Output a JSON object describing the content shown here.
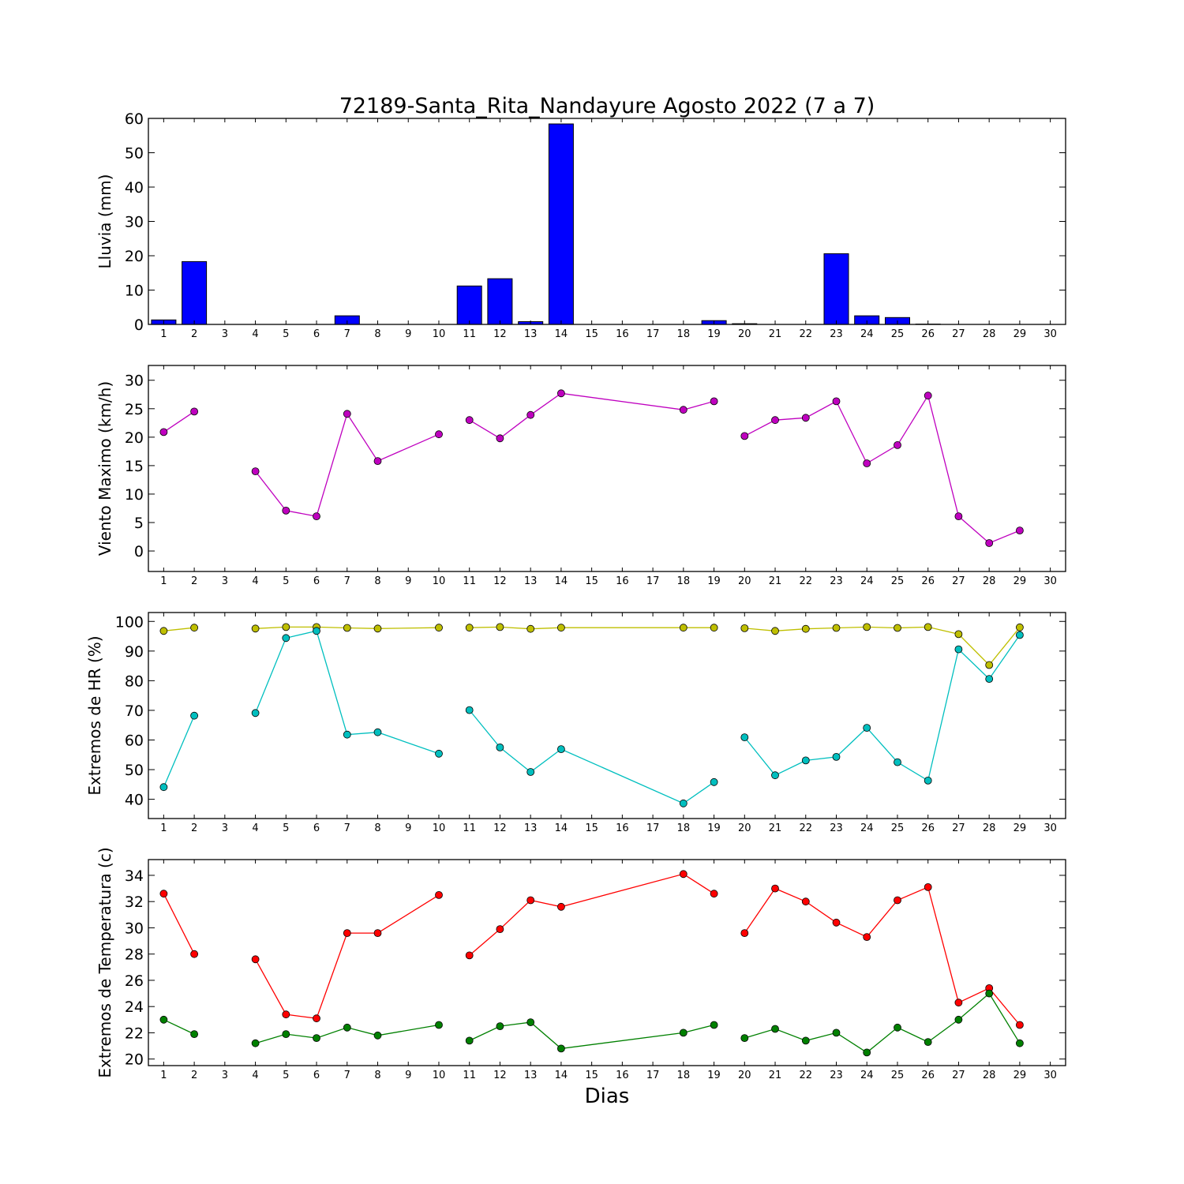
{
  "chart_data": {
    "title": "72189-Santa_Rita_Nandayure Agosto 2022  (7 a 7)",
    "xlabel": "Dias",
    "xticks": [
      1,
      2,
      3,
      4,
      5,
      6,
      7,
      8,
      9,
      10,
      11,
      12,
      13,
      14,
      15,
      16,
      17,
      18,
      19,
      20,
      21,
      22,
      23,
      24,
      25,
      26,
      27,
      28,
      29,
      30
    ],
    "xlim": [
      0.5,
      30.5
    ],
    "panels": [
      {
        "type": "bar",
        "ylabel": "Lluvia (mm)",
        "ylim": [
          0,
          60
        ],
        "yticks": [
          0,
          10,
          20,
          30,
          40,
          50,
          60
        ],
        "series": [
          {
            "color": "#0000ff",
            "x": [
              1,
              2,
              3,
              4,
              5,
              6,
              7,
              8,
              9,
              10,
              11,
              12,
              13,
              14,
              15,
              16,
              17,
              18,
              19,
              20,
              21,
              22,
              23,
              24,
              25,
              26,
              27,
              28,
              29
            ],
            "values": [
              1.3,
              18.3,
              0,
              0,
              0,
              0,
              2.5,
              0,
              0,
              0,
              11.2,
              13.3,
              0.8,
              58.4,
              0,
              0,
              0,
              0,
              1.1,
              0.2,
              0,
              0,
              20.6,
              2.5,
              2.0,
              0.1,
              0,
              0,
              0
            ]
          }
        ]
      },
      {
        "type": "line",
        "ylabel": "Viento Maximo (km/h)",
        "ylim": [
          -3.6,
          32.6
        ],
        "yticks": [
          0,
          5,
          10,
          15,
          20,
          25,
          30
        ],
        "series": [
          {
            "color": "#bf00bf",
            "x": [
              1,
              2,
              4,
              5,
              6,
              7,
              8,
              10,
              11,
              12,
              13,
              14,
              18,
              19,
              20,
              21,
              22,
              23,
              24,
              25,
              26,
              27,
              28,
              29
            ],
            "values": [
              20.9,
              24.5,
              14.0,
              7.1,
              6.1,
              24.1,
              15.8,
              20.5,
              23.0,
              19.8,
              23.9,
              27.7,
              24.8,
              26.3,
              20.2,
              23.0,
              23.4,
              26.3,
              15.4,
              18.6,
              27.3,
              6.1,
              1.4,
              3.6
            ],
            "breaks_after": [
              2,
              8,
              14
            ]
          }
        ]
      },
      {
        "type": "line",
        "ylabel": "Extremos de HR (%)",
        "ylim": [
          33.5,
          103
        ],
        "yticks": [
          40,
          50,
          60,
          70,
          80,
          90,
          100
        ],
        "series": [
          {
            "color": "#bfbf00",
            "x": [
              1,
              2,
              4,
              5,
              6,
              7,
              8,
              10,
              11,
              12,
              13,
              14,
              18,
              19,
              20,
              21,
              22,
              23,
              24,
              25,
              26,
              27,
              28,
              29
            ],
            "values": [
              96.8,
              97.9,
              97.6,
              98.1,
              98.1,
              97.8,
              97.6,
              97.9,
              97.9,
              98.1,
              97.5,
              97.9,
              97.9,
              97.9,
              97.7,
              96.8,
              97.5,
              97.8,
              98.1,
              97.8,
              98.1,
              95.7,
              85.3,
              98.0
            ],
            "breaks_after": [
              2,
              8,
              14
            ]
          },
          {
            "color": "#00bfbf",
            "x": [
              1,
              2,
              4,
              5,
              6,
              7,
              8,
              10,
              11,
              12,
              13,
              14,
              18,
              19,
              20,
              21,
              22,
              23,
              24,
              25,
              26,
              27,
              28,
              29
            ],
            "values": [
              44.1,
              68.2,
              69.1,
              94.4,
              96.8,
              61.8,
              62.6,
              55.4,
              70.1,
              57.5,
              49.2,
              56.9,
              38.6,
              45.8,
              60.9,
              48.1,
              53.1,
              54.3,
              64.1,
              52.5,
              46.3,
              90.6,
              80.6,
              95.4
            ],
            "breaks_after": [
              2,
              8,
              14
            ]
          }
        ]
      },
      {
        "type": "line",
        "ylabel": "Extremos de Temperatura (c)",
        "ylim": [
          19.5,
          35.2
        ],
        "yticks": [
          20,
          22,
          24,
          26,
          28,
          30,
          32,
          34
        ],
        "series": [
          {
            "color": "#ff0000",
            "x": [
              1,
              2,
              4,
              5,
              6,
              7,
              8,
              10,
              11,
              12,
              13,
              14,
              18,
              19,
              20,
              21,
              22,
              23,
              24,
              25,
              26,
              27,
              28,
              29
            ],
            "values": [
              32.6,
              28.0,
              27.6,
              23.4,
              23.1,
              29.6,
              29.6,
              32.5,
              27.9,
              29.9,
              32.1,
              31.6,
              34.1,
              32.6,
              29.6,
              33.0,
              32.0,
              30.4,
              29.3,
              32.1,
              33.1,
              24.3,
              25.4,
              22.6
            ],
            "breaks_after": [
              2,
              8,
              14
            ]
          },
          {
            "color": "#008000",
            "x": [
              1,
              2,
              4,
              5,
              6,
              7,
              8,
              10,
              11,
              12,
              13,
              14,
              18,
              19,
              20,
              21,
              22,
              23,
              24,
              25,
              26,
              27,
              28,
              29
            ],
            "values": [
              23.0,
              21.9,
              21.2,
              21.9,
              21.6,
              22.4,
              21.8,
              22.6,
              21.4,
              22.5,
              22.8,
              20.8,
              22.0,
              22.6,
              21.6,
              22.3,
              21.4,
              22.0,
              20.5,
              22.4,
              21.3,
              23.0,
              25.0,
              21.2
            ],
            "breaks_after": [
              2,
              8,
              14
            ]
          }
        ]
      }
    ]
  }
}
